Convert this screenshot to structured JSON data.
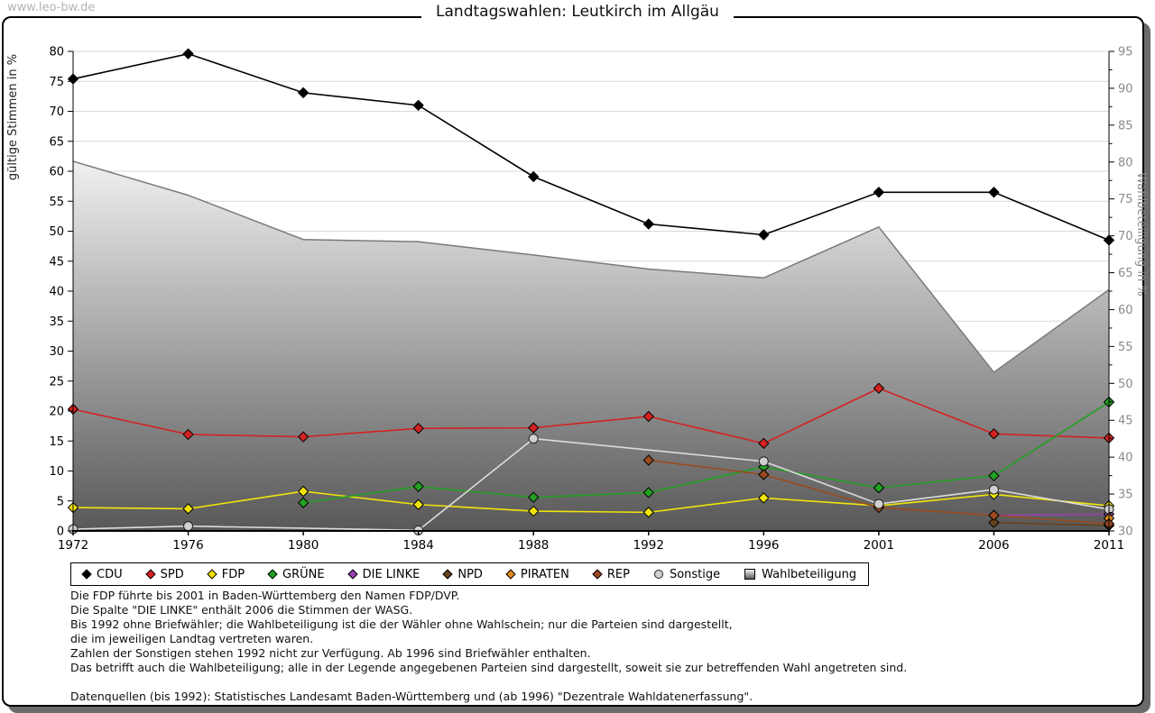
{
  "watermark": "www.leo-bw.de",
  "chart_data": {
    "type": "line",
    "title": "Landtagswahlen: Leutkirch im Allgäu",
    "categories": [
      "1972",
      "1976",
      "1980",
      "1984",
      "1988",
      "1992",
      "1996",
      "2001",
      "2006",
      "2011"
    ],
    "left_axis": {
      "label": "gültige Stimmen in %",
      "min": 0,
      "max": 80,
      "step": 5
    },
    "right_axis": {
      "label": "Wahlbeteiligung in %",
      "min": 30,
      "max": 95,
      "step": 5
    },
    "grid": true,
    "legend_position": "bottom",
    "series": [
      {
        "name": "CDU",
        "color": "#000000",
        "marker": "diamond",
        "axis": "left",
        "values": [
          75.4,
          79.6,
          73.1,
          71.0,
          59.1,
          51.2,
          49.4,
          56.5,
          56.5,
          48.5
        ]
      },
      {
        "name": "SPD",
        "color": "#d42222",
        "marker": "diamond",
        "axis": "left",
        "values": [
          20.3,
          16.1,
          15.7,
          17.1,
          17.2,
          19.1,
          14.6,
          23.8,
          16.2,
          15.5
        ]
      },
      {
        "name": "FDP",
        "color": "#f2e40a",
        "marker": "diamond",
        "axis": "left",
        "values": [
          3.9,
          3.7,
          6.6,
          4.4,
          3.3,
          3.1,
          5.5,
          4.2,
          6.1,
          4.2
        ]
      },
      {
        "name": "GRÜNE",
        "color": "#22a022",
        "marker": "diamond",
        "axis": "left",
        "values": [
          null,
          null,
          4.7,
          7.4,
          5.6,
          6.4,
          10.7,
          7.2,
          9.2,
          21.5
        ]
      },
      {
        "name": "DIE LINKE",
        "color": "#9940b0",
        "marker": "diamond",
        "axis": "left",
        "values": [
          null,
          null,
          null,
          null,
          null,
          null,
          null,
          null,
          2.6,
          2.8
        ]
      },
      {
        "name": "NPD",
        "color": "#66421e",
        "marker": "diamond",
        "axis": "left",
        "values": [
          null,
          null,
          null,
          null,
          null,
          null,
          null,
          null,
          1.4,
          0.9
        ]
      },
      {
        "name": "PIRATEN",
        "color": "#e08a1e",
        "marker": "diamond",
        "axis": "left",
        "values": [
          null,
          null,
          null,
          null,
          null,
          null,
          null,
          null,
          null,
          2.1
        ]
      },
      {
        "name": "REP",
        "color": "#9a4a1e",
        "marker": "diamond",
        "axis": "left",
        "values": [
          null,
          null,
          null,
          null,
          null,
          11.8,
          9.4,
          3.9,
          2.6,
          1.2
        ]
      },
      {
        "name": "Sonstige",
        "color": "#d0d0d0",
        "line_color": "#dcdcdc",
        "marker": "circle",
        "axis": "left",
        "values": [
          0.3,
          0.8,
          null,
          0.1,
          15.4,
          null,
          11.6,
          4.5,
          6.9,
          3.6
        ]
      },
      {
        "name": "Wahlbeteiligung",
        "marker": "area",
        "axis": "right",
        "fill_top": "#f0f0f0",
        "fill_bottom": "#585858",
        "outline": "#7a7a7a",
        "values": [
          80.1,
          75.5,
          69.5,
          69.2,
          67.4,
          65.5,
          64.3,
          71.2,
          51.5,
          62.7
        ]
      }
    ]
  },
  "footnotes": [
    "Die FDP führte bis 2001 in Baden-Württemberg den Namen FDP/DVP.",
    "Die Spalte \"DIE LINKE\" enthält 2006 die Stimmen der WASG.",
    "Bis 1992 ohne Briefwähler; die Wahlbeteiligung ist die der Wähler ohne Wahlschein; nur die Parteien sind dargestellt,",
    "die im jeweiligen Landtag vertreten waren.",
    "Zahlen der Sonstigen stehen 1992 nicht zur Verfügung. Ab 1996 sind Briefwähler enthalten.",
    "Das betrifft auch die Wahlbeteiligung; alle in der Legende angegebenen Parteien sind dargestellt, soweit sie zur betreffenden Wahl angetreten sind.",
    "",
    "Datenquellen (bis 1992): Statistisches Landesamt Baden-Württemberg und (ab 1996) \"Dezentrale Wahldatenerfassung\"."
  ]
}
